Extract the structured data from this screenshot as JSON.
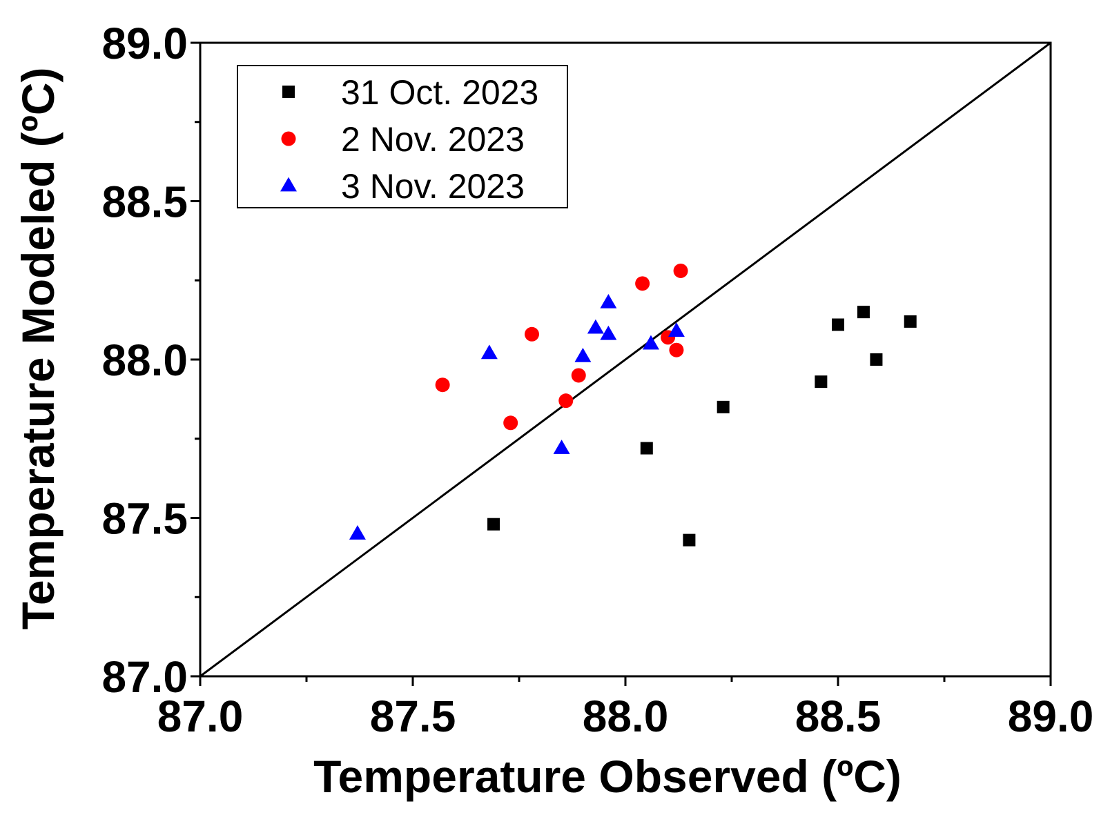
{
  "chart_data": {
    "type": "scatter",
    "title": "",
    "xlabel": "Temperature Observed (ºC)",
    "ylabel": "Temperature Modeled (ºC)",
    "xlim": [
      87.0,
      89.0
    ],
    "ylim": [
      87.0,
      89.0
    ],
    "xticks": [
      "87.0",
      "87.5",
      "88.0",
      "88.5",
      "89.0"
    ],
    "yticks": [
      "87.0",
      "87.5",
      "88.0",
      "88.5",
      "89.0"
    ],
    "xticks_values": [
      87.0,
      87.5,
      88.0,
      88.5,
      89.0
    ],
    "yticks_values": [
      87.0,
      87.5,
      88.0,
      88.5,
      89.0
    ],
    "grid": false,
    "legend_position": "top-left",
    "reference_line": {
      "name": "1:1 line",
      "from": [
        87.0,
        87.0
      ],
      "to": [
        89.0,
        89.0
      ],
      "color": "#000000"
    },
    "series": [
      {
        "name": "31 Oct. 2023",
        "marker": "square",
        "color": "#000000",
        "x": [
          87.69,
          88.05,
          88.15,
          88.23,
          88.46,
          88.5,
          88.56,
          88.59,
          88.67
        ],
        "y": [
          87.48,
          87.72,
          87.43,
          87.85,
          87.93,
          88.11,
          88.15,
          88.0,
          88.12
        ]
      },
      {
        "name": "2 Nov. 2023",
        "marker": "circle",
        "color": "#ff0000",
        "x": [
          87.57,
          87.73,
          87.78,
          87.86,
          87.89,
          88.04,
          88.1,
          88.12,
          88.13
        ],
        "y": [
          87.92,
          87.8,
          88.08,
          87.87,
          87.95,
          88.24,
          88.07,
          88.03,
          88.28
        ]
      },
      {
        "name": "3 Nov. 2023",
        "marker": "triangle",
        "color": "#0000ff",
        "x": [
          87.37,
          87.68,
          87.85,
          87.9,
          87.93,
          87.96,
          87.96,
          88.06,
          88.12
        ],
        "y": [
          87.45,
          88.02,
          87.72,
          88.01,
          88.1,
          88.08,
          88.18,
          88.05,
          88.09
        ]
      }
    ]
  }
}
